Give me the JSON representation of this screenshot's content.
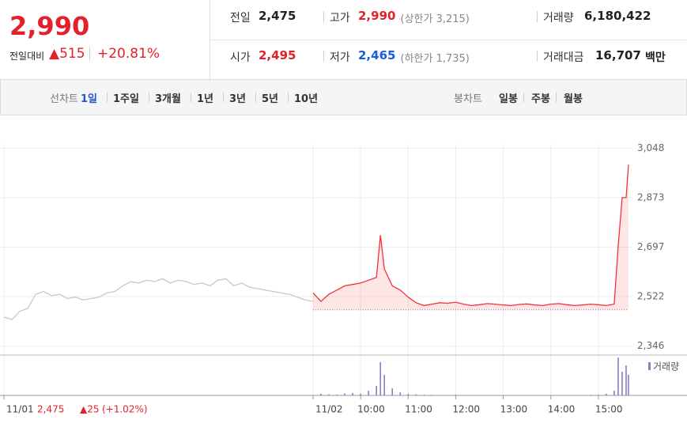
{
  "quote": {
    "price": "2,990",
    "change_label": "전일대비",
    "change": "▲515",
    "change_rate": "+20.81%"
  },
  "summary": [
    [
      {
        "label": "전일",
        "value": "2,475"
      },
      {
        "label": "고가",
        "value": "2,990",
        "extra": "(상한가 3,215)",
        "color": "#e4202a"
      },
      {
        "label": "거래량",
        "value": "6,180,422"
      }
    ],
    [
      {
        "label": "시가",
        "value": "2,495",
        "color": "#e4202a"
      },
      {
        "label": "저가",
        "value": "2,465",
        "extra": "(하한가 1,735)",
        "color": "#1a5ddb"
      },
      {
        "label": "거래대금",
        "value": "16,707",
        "unit": "백만"
      }
    ]
  ],
  "tabs": {
    "line_label": "선차트",
    "periods": [
      "1일",
      "1주일",
      "3개월",
      "1년",
      "3년",
      "5년",
      "10년"
    ],
    "selected": 0,
    "candle_label": "봉차트",
    "candles": [
      "일봉",
      "주봉",
      "월봉"
    ]
  },
  "chart_data": {
    "type": "line",
    "x": [
      0,
      10,
      20,
      30,
      40,
      50,
      60,
      70,
      80,
      90,
      100,
      110,
      120,
      130,
      140,
      150,
      160,
      170,
      180,
      190,
      200,
      210,
      220,
      230,
      240,
      250,
      260,
      270,
      280,
      290,
      300,
      310,
      320,
      330,
      340,
      350,
      360,
      370,
      380,
      390,
      400,
      410,
      420,
      430,
      440,
      450,
      460,
      470,
      475,
      480,
      490,
      500,
      510,
      520,
      530,
      540,
      550,
      560,
      570,
      580,
      590,
      600,
      610,
      620,
      630,
      640,
      650,
      660,
      670,
      680,
      690,
      700,
      710,
      720,
      730,
      740,
      750,
      760,
      770,
      775,
      780,
      785,
      788
    ],
    "series": [
      {
        "color": "#c8c8c8",
        "values": [
          2450,
          2440,
          2470,
          2480,
          2530,
          2540,
          2525,
          2530,
          2515,
          2520,
          2510,
          2515,
          2520,
          2535,
          2540,
          2560,
          2575,
          2570,
          2580,
          2575,
          2585,
          2570,
          2580,
          2575,
          2565,
          2570,
          2560,
          2580,
          2585,
          2560,
          2570,
          2555,
          2550,
          2545,
          2540,
          2535,
          2530,
          2520,
          2510,
          2505,
          null,
          null,
          null,
          null,
          null,
          null,
          null,
          null,
          null,
          null,
          null,
          null,
          null,
          null,
          null,
          null,
          null,
          null,
          null,
          null,
          null,
          null,
          null,
          null,
          null,
          null,
          null,
          null,
          null,
          null,
          null,
          null,
          null,
          null,
          null,
          null,
          null,
          null,
          null,
          null,
          null,
          null,
          null
        ]
      },
      {
        "color": "#f0323c",
        "fill": "rgba(255,60,60,0.13)",
        "values": [
          null,
          null,
          null,
          null,
          null,
          null,
          null,
          null,
          null,
          null,
          null,
          null,
          null,
          null,
          null,
          null,
          null,
          null,
          null,
          null,
          null,
          null,
          null,
          null,
          null,
          null,
          null,
          null,
          null,
          null,
          null,
          null,
          null,
          null,
          null,
          null,
          null,
          null,
          null,
          2535,
          2505,
          2530,
          2545,
          2560,
          2565,
          2570,
          2580,
          2590,
          2740,
          2620,
          2560,
          2545,
          2520,
          2500,
          2490,
          2495,
          2500,
          2498,
          2502,
          2495,
          2490,
          2493,
          2497,
          2495,
          2492,
          2490,
          2494,
          2496,
          2492,
          2490,
          2495,
          2497,
          2493,
          2490,
          2492,
          2495,
          2493,
          2490,
          2495,
          2700,
          2873,
          2873,
          2990
        ]
      }
    ],
    "baseline": 2475,
    "volume": {
      "name": "거래량",
      "color": "#8e7cc3",
      "vlim": [
        0,
        500000
      ],
      "values": [
        2000,
        5000,
        3000,
        1000,
        4000,
        2000,
        1000,
        3000,
        2000,
        1000,
        2000,
        1000,
        3000,
        2000,
        1000,
        2000,
        4000,
        1000,
        2000,
        1000,
        1000,
        2000,
        1000,
        3000,
        1000,
        2000,
        1000,
        1000,
        2000,
        1000,
        1000,
        2000,
        1000,
        1000,
        2000,
        1000,
        1000,
        2000,
        1000,
        3000,
        20000,
        15000,
        10000,
        25000,
        30000,
        20000,
        60000,
        120000,
        420000,
        260000,
        90000,
        40000,
        20000,
        15000,
        10000,
        8000,
        6000,
        5000,
        7000,
        4000,
        5000,
        6000,
        4000,
        5000,
        3000,
        4000,
        5000,
        6000,
        4000,
        5000,
        3000,
        5000,
        4000,
        6000,
        5000,
        8000,
        10000,
        20000,
        60000,
        480000,
        300000,
        380000,
        260000
      ]
    },
    "xlim": [
      0,
      795
    ],
    "xticks": [
      {
        "value": 0,
        "label": "11/01"
      },
      {
        "value": 390,
        "label": "11/02"
      },
      {
        "value": 450,
        "label": "10:00"
      },
      {
        "value": 510,
        "label": "11:00"
      },
      {
        "value": 570,
        "label": "12:00"
      },
      {
        "value": 630,
        "label": "13:00"
      },
      {
        "value": 690,
        "label": "14:00"
      },
      {
        "value": 750,
        "label": "15:00"
      }
    ],
    "ylim": [
      2320,
      3055
    ],
    "yticks": [
      {
        "value": 3048,
        "label": "3,048"
      },
      {
        "value": 2873,
        "label": "2,873"
      },
      {
        "value": 2697,
        "label": "2,697"
      },
      {
        "value": 2522,
        "label": "2,522"
      },
      {
        "value": 2346,
        "label": "2,346"
      }
    ],
    "grid": true,
    "prev_day_note": {
      "close": "2,475",
      "change": "▲25",
      "rate": "(+1.02%)"
    }
  }
}
